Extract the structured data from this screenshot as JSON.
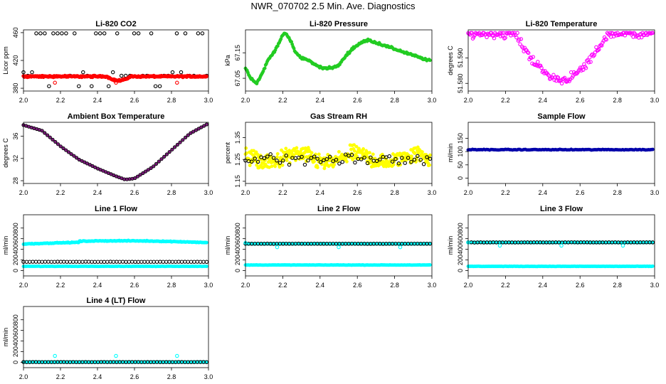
{
  "title": "NWR_070702  2.5 Min. Ave. Diagnostics",
  "colors": {
    "black": "#000000",
    "red": "#ff0000",
    "green": "#22cc22",
    "magenta": "#ff00ff",
    "purple": "#7a1b7a",
    "yellow": "#ffff00",
    "blue": "#0000aa",
    "cyan": "#00ffff"
  },
  "chart_data": [
    {
      "id": "co2",
      "type": "scatter",
      "title": "Li-820 CO2",
      "ylabel": "Licor ppm",
      "xlim": [
        2.0,
        3.0
      ],
      "ylim": [
        376,
        464
      ],
      "xticks": [
        2.0,
        2.2,
        2.4,
        2.6,
        2.8,
        3.0
      ],
      "xtick_labels": [
        "2.0",
        "2.2",
        "2.4",
        "2.6",
        "2.8",
        "3.0"
      ],
      "yticks": [
        380,
        420,
        460
      ],
      "ytick_labels": [
        "380",
        "420",
        "460"
      ],
      "series": [
        {
          "name": "black",
          "color": "black",
          "style": "ring",
          "gen": "co2_black",
          "count": 44
        },
        {
          "name": "red",
          "color": "red",
          "style": "solid",
          "gen": "co2_red",
          "count": 240
        },
        {
          "name": "red-outliers",
          "color": "red",
          "style": "ring",
          "x": [
            2.17,
            2.5,
            2.83
          ],
          "y": [
            388,
            388,
            388
          ]
        }
      ]
    },
    {
      "id": "pressure",
      "type": "scatter",
      "title": "Li-820 Pressure",
      "ylabel": "kPa",
      "xlim": [
        2.0,
        3.0
      ],
      "ylim": [
        67.0,
        67.24
      ],
      "xticks": [
        2.0,
        2.2,
        2.4,
        2.6,
        2.8,
        3.0
      ],
      "xtick_labels": [
        "2.0",
        "2.2",
        "2.4",
        "2.6",
        "2.8",
        "3.0"
      ],
      "yticks": [
        67.05,
        67.15
      ],
      "ytick_labels": [
        "67.05",
        "67.15"
      ],
      "series": [
        {
          "name": "green",
          "color": "green",
          "style": "fill",
          "gen": "pressure",
          "count": 230,
          "curve_x": [
            2.0,
            2.03,
            2.06,
            2.09,
            2.12,
            2.15,
            2.18,
            2.21,
            2.24,
            2.27,
            2.3,
            2.34,
            2.38,
            2.42,
            2.46,
            2.5,
            2.54,
            2.58,
            2.62,
            2.66,
            2.7,
            2.74,
            2.78,
            2.82,
            2.86,
            2.9,
            2.94,
            2.98
          ],
          "curve_y": [
            67.09,
            67.05,
            67.03,
            67.07,
            67.12,
            67.15,
            67.19,
            67.23,
            67.2,
            67.15,
            67.13,
            67.12,
            67.1,
            67.09,
            67.09,
            67.1,
            67.14,
            67.17,
            67.19,
            67.2,
            67.19,
            67.18,
            67.17,
            67.16,
            67.15,
            67.14,
            67.13,
            67.12
          ]
        }
      ]
    },
    {
      "id": "licor-temp",
      "type": "scatter",
      "title": "Li-820 Temperature",
      "ylabel": "degrees C",
      "xlim": [
        2.0,
        3.0
      ],
      "ylim": [
        51.577,
        51.601
      ],
      "xticks": [
        2.0,
        2.2,
        2.4,
        2.6,
        2.8,
        3.0
      ],
      "xtick_labels": [
        "2.0",
        "2.2",
        "2.4",
        "2.6",
        "2.8",
        "3.0"
      ],
      "yticks": [
        51.58,
        51.59
      ],
      "ytick_labels": [
        "51.580",
        "51.590"
      ],
      "series": [
        {
          "name": "magenta",
          "color": "magenta",
          "style": "ring",
          "gen": "licor_temp",
          "count": 200
        }
      ]
    },
    {
      "id": "ambient",
      "type": "scatter",
      "title": "Ambient Box Temperature",
      "ylabel": "degrees C",
      "xlim": [
        2.0,
        3.0
      ],
      "ylim": [
        27.5,
        38.5
      ],
      "xticks": [
        2.0,
        2.2,
        2.4,
        2.6,
        2.8,
        3.0
      ],
      "xtick_labels": [
        "2.0",
        "2.2",
        "2.4",
        "2.6",
        "2.8",
        "3.0"
      ],
      "yticks": [
        28,
        32,
        36
      ],
      "ytick_labels": [
        "28",
        "32",
        "36"
      ],
      "series": [
        {
          "name": "ambient",
          "color": "purple",
          "style": "fill",
          "gen": "ambient",
          "count": 70,
          "curve_x": [
            2.0,
            2.1,
            2.2,
            2.3,
            2.4,
            2.5,
            2.55,
            2.6,
            2.7,
            2.8,
            2.9,
            3.0
          ],
          "curve_y": [
            38.0,
            37.0,
            34.2,
            31.8,
            30.2,
            28.8,
            28.2,
            28.4,
            30.5,
            33.5,
            36.5,
            38.3
          ]
        }
      ]
    },
    {
      "id": "rh",
      "type": "scatter",
      "title": "Gas Stream RH",
      "ylabel": "percent",
      "xlim": [
        2.0,
        3.0
      ],
      "ylim": [
        1.14,
        1.42
      ],
      "xticks": [
        2.0,
        2.2,
        2.4,
        2.6,
        2.8,
        3.0
      ],
      "xtick_labels": [
        "2.0",
        "2.2",
        "2.4",
        "2.6",
        "2.8",
        "3.0"
      ],
      "yticks": [
        1.15,
        1.25,
        1.35
      ],
      "ytick_labels": [
        "1.15",
        "1.25",
        "1.35"
      ],
      "series": [
        {
          "name": "yellow",
          "color": "yellow",
          "style": "fill",
          "gen": "rh_yellow",
          "count": 380
        },
        {
          "name": "black",
          "color": "black",
          "style": "ring",
          "gen": "rh_black",
          "count": 60
        }
      ]
    },
    {
      "id": "sample-flow",
      "type": "scatter",
      "title": "Sample Flow",
      "ylabel": "ml/min",
      "xlim": [
        2.0,
        3.0
      ],
      "ylim": [
        -20,
        210
      ],
      "xticks": [
        2.0,
        2.2,
        2.4,
        2.6,
        2.8,
        3.0
      ],
      "xtick_labels": [
        "2.0",
        "2.2",
        "2.4",
        "2.6",
        "2.8",
        "3.0"
      ],
      "yticks": [
        0,
        50,
        100,
        150
      ],
      "ytick_labels": [
        "0",
        "50",
        "100",
        "150"
      ],
      "series": [
        {
          "name": "blue",
          "color": "blue",
          "style": "fill",
          "gen": "flat",
          "level": 107,
          "jitter": 2,
          "count": 130
        }
      ]
    },
    {
      "id": "line1",
      "type": "scatter",
      "title": "Line 1 Flow",
      "ylabel": "ml/min",
      "xlim": [
        2.0,
        3.0
      ],
      "ylim": [
        -100,
        1050
      ],
      "xticks": [
        2.0,
        2.2,
        2.4,
        2.6,
        2.8,
        3.0
      ],
      "xtick_labels": [
        "2.0",
        "2.2",
        "2.4",
        "2.6",
        "2.8",
        "3.0"
      ],
      "yticks": [
        0,
        200,
        400,
        600,
        800
      ],
      "ytick_labels": [
        "0",
        "200",
        "400",
        "600",
        "800"
      ],
      "series": [
        {
          "name": "cyan-high",
          "color": "cyan",
          "style": "fill",
          "gen": "line1_high",
          "count": 240
        },
        {
          "name": "cyan-low",
          "color": "cyan",
          "style": "fill",
          "gen": "flat",
          "level": 80,
          "jitter": 4,
          "count": 120
        },
        {
          "name": "black",
          "color": "black",
          "style": "ring",
          "gen": "flat",
          "level": 165,
          "jitter": 3,
          "count": 60
        }
      ]
    },
    {
      "id": "line2",
      "type": "scatter",
      "title": "Line 2 Flow",
      "ylabel": "ml/min",
      "xlim": [
        2.0,
        3.0
      ],
      "ylim": [
        -100,
        1050
      ],
      "xticks": [
        2.0,
        2.2,
        2.4,
        2.6,
        2.8,
        3.0
      ],
      "xtick_labels": [
        "2.0",
        "2.2",
        "2.4",
        "2.6",
        "2.8",
        "3.0"
      ],
      "yticks": [
        0,
        200,
        400,
        600,
        800
      ],
      "ytick_labels": [
        "0",
        "200",
        "400",
        "600",
        "800"
      ],
      "series": [
        {
          "name": "cyan-high",
          "color": "cyan",
          "style": "fill",
          "gen": "flat",
          "level": 505,
          "jitter": 4,
          "count": 200
        },
        {
          "name": "cyan-low",
          "color": "cyan",
          "style": "fill",
          "gen": "flat",
          "level": 105,
          "jitter": 4,
          "count": 180
        },
        {
          "name": "black",
          "color": "black",
          "style": "ring",
          "gen": "flat",
          "level": 505,
          "jitter": 3,
          "count": 60
        },
        {
          "name": "cyan-dips",
          "color": "cyan",
          "style": "ring",
          "x": [
            2.0,
            2.17,
            2.5,
            2.83
          ],
          "y": [
            520,
            440,
            440,
            440
          ]
        }
      ]
    },
    {
      "id": "line3",
      "type": "scatter",
      "title": "Line 3 Flow",
      "ylabel": "ml/min",
      "xlim": [
        2.0,
        3.0
      ],
      "ylim": [
        -100,
        1050
      ],
      "xticks": [
        2.0,
        2.2,
        2.4,
        2.6,
        2.8,
        3.0
      ],
      "xtick_labels": [
        "2.0",
        "2.2",
        "2.4",
        "2.6",
        "2.8",
        "3.0"
      ],
      "yticks": [
        0,
        200,
        400,
        600,
        800
      ],
      "ytick_labels": [
        "0",
        "200",
        "400",
        "600",
        "800"
      ],
      "series": [
        {
          "name": "cyan-high",
          "color": "cyan",
          "style": "fill",
          "gen": "flat",
          "level": 530,
          "jitter": 5,
          "count": 200
        },
        {
          "name": "cyan-low",
          "color": "cyan",
          "style": "fill",
          "gen": "flat",
          "level": 80,
          "jitter": 5,
          "count": 180
        },
        {
          "name": "black",
          "color": "black",
          "style": "ring",
          "gen": "flat",
          "level": 530,
          "jitter": 3,
          "count": 60
        },
        {
          "name": "cyan-dips",
          "color": "cyan",
          "style": "ring",
          "x": [
            2.0,
            2.17,
            2.5,
            2.83
          ],
          "y": [
            530,
            470,
            470,
            470
          ]
        }
      ]
    },
    {
      "id": "line4",
      "type": "scatter",
      "title": "Line 4 (LT) Flow",
      "ylabel": "ml/min",
      "xlim": [
        2.0,
        3.0
      ],
      "ylim": [
        -100,
        1050
      ],
      "xticks": [
        2.0,
        2.2,
        2.4,
        2.6,
        2.8,
        3.0
      ],
      "xtick_labels": [
        "2.0",
        "2.2",
        "2.4",
        "2.6",
        "2.8",
        "3.0"
      ],
      "yticks": [
        0,
        200,
        400,
        600,
        800
      ],
      "ytick_labels": [
        "0",
        "200",
        "400",
        "600",
        "800"
      ],
      "series": [
        {
          "name": "cyan",
          "color": "cyan",
          "style": "fill",
          "gen": "flat",
          "level": 5,
          "jitter": 2,
          "count": 200
        },
        {
          "name": "black",
          "color": "black",
          "style": "ring",
          "gen": "flat",
          "level": 5,
          "jitter": 1,
          "count": 60
        },
        {
          "name": "cyan-spikes",
          "color": "cyan",
          "style": "ring",
          "x": [
            2.17,
            2.5,
            2.83
          ],
          "y": [
            120,
            120,
            120
          ]
        }
      ]
    }
  ]
}
